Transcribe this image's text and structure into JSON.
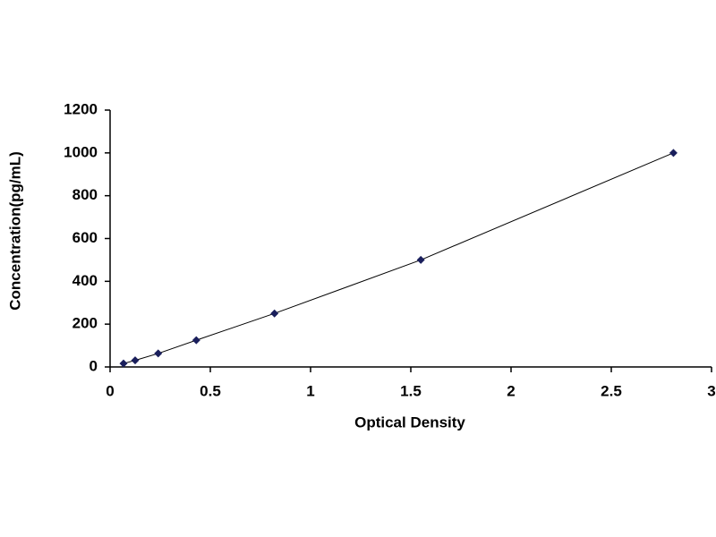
{
  "chart_data": {
    "type": "scatter-line",
    "x_label": "Optical Density",
    "y_label": "Concentration(pg/mL)",
    "x": [
      0.067,
      0.125,
      0.24,
      0.43,
      0.82,
      1.55,
      2.81
    ],
    "values": [
      16,
      31,
      63,
      125,
      250,
      500,
      1000
    ],
    "color": "#1a1f5c",
    "xlim": [
      0,
      3
    ],
    "xticks": [
      0,
      0.5,
      1,
      1.5,
      2,
      2.5,
      3
    ],
    "ylim": [
      0,
      1200
    ],
    "yticks": [
      0,
      200,
      400,
      600,
      800,
      1000,
      1200
    ],
    "grid": false
  }
}
